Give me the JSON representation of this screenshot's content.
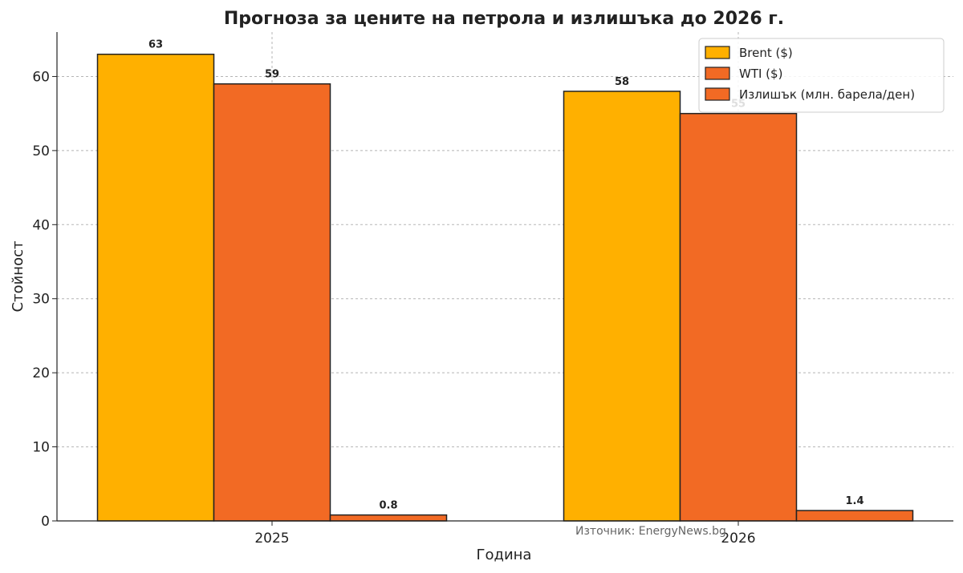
{
  "chart_data": {
    "type": "bar",
    "title": "Прогноза за цените на петрола и излишъка до 2026 г.",
    "xlabel": "Година",
    "ylabel": "Стойност",
    "categories": [
      "2025",
      "2026"
    ],
    "series": [
      {
        "name": "Brent ($)",
        "values": [
          63,
          58
        ],
        "labels": [
          "63",
          "58"
        ],
        "color": "#FFB000"
      },
      {
        "name": "WTI ($)",
        "values": [
          59,
          55
        ],
        "labels": [
          "59",
          "55"
        ],
        "color": "#F26A24"
      },
      {
        "name": "Излишък (млн. барела/ден)",
        "values": [
          0.8,
          1.4
        ],
        "labels": [
          "0.8",
          "1.4"
        ],
        "color": "#F26A24"
      }
    ],
    "ylim": [
      0,
      66
    ],
    "yticks": [
      0,
      10,
      20,
      30,
      40,
      50,
      60
    ],
    "grid": true,
    "legend_position": "top-right",
    "source": "Източник: EnergyNews.bg"
  }
}
